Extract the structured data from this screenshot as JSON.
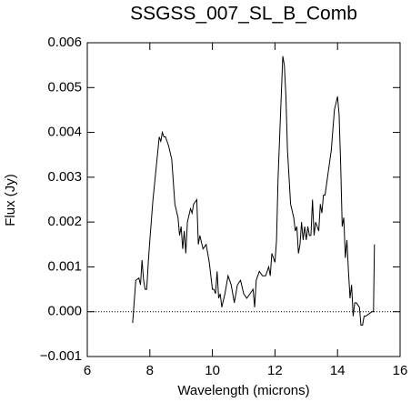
{
  "chart_data": {
    "type": "line",
    "title": "SSGSS_007_SL_B_Comb",
    "x_label": "Wavelength (microns)",
    "y_label": "Flux (Jy)",
    "xlim": [
      6,
      16
    ],
    "ylim": [
      -0.001,
      0.006
    ],
    "xticks": [
      6,
      8,
      10,
      12,
      14,
      16
    ],
    "yticks": [
      {
        "value": -0.001,
        "label": "−0.001"
      },
      {
        "value": 0,
        "label": "0.000"
      },
      0.001,
      0.002,
      0.003,
      0.004,
      0.005,
      0.006
    ],
    "zero_line": true,
    "x": [
      7.45,
      7.55,
      7.65,
      7.7,
      7.75,
      7.8,
      7.85,
      7.9,
      7.95,
      8.0,
      8.1,
      8.2,
      8.3,
      8.35,
      8.4,
      8.45,
      8.5,
      8.6,
      8.7,
      8.8,
      8.9,
      8.95,
      9.0,
      9.05,
      9.1,
      9.15,
      9.2,
      9.3,
      9.35,
      9.4,
      9.5,
      9.55,
      9.6,
      9.7,
      9.8,
      9.9,
      10.0,
      10.05,
      10.1,
      10.15,
      10.2,
      10.25,
      10.3,
      10.4,
      10.5,
      10.6,
      10.7,
      10.8,
      10.9,
      11.0,
      11.1,
      11.2,
      11.3,
      11.35,
      11.4,
      11.5,
      11.6,
      11.7,
      11.8,
      11.85,
      11.9,
      12.0,
      12.05,
      12.1,
      12.2,
      12.25,
      12.3,
      12.35,
      12.4,
      12.5,
      12.6,
      12.65,
      12.7,
      12.75,
      12.8,
      12.85,
      12.9,
      12.95,
      13.0,
      13.05,
      13.1,
      13.15,
      13.2,
      13.25,
      13.3,
      13.4,
      13.45,
      13.5,
      13.55,
      13.6,
      13.7,
      13.8,
      13.9,
      14.0,
      14.05,
      14.1,
      14.15,
      14.2,
      14.25,
      14.3,
      14.35,
      14.4,
      14.45,
      14.5,
      14.55,
      14.6,
      14.7,
      14.75,
      14.8,
      14.85,
      14.9,
      15.0,
      15.1,
      15.15,
      15.18
    ],
    "series": [
      {
        "color": "#000000",
        "values": [
          -0.00025,
          0.0007,
          0.00075,
          0.0006,
          0.00115,
          0.0007,
          0.0005,
          0.0005,
          0.0011,
          0.0016,
          0.0025,
          0.0032,
          0.0039,
          0.0038,
          0.004,
          0.0039,
          0.0039,
          0.0037,
          0.0034,
          0.0024,
          0.0021,
          0.0017,
          0.0019,
          0.0014,
          0.0018,
          0.0013,
          0.002,
          0.0023,
          0.0022,
          0.0024,
          0.0025,
          0.0015,
          0.0017,
          0.0014,
          0.0015,
          0.0011,
          0.0005,
          0.0005,
          0.0004,
          0.0009,
          0.0003,
          0.0004,
          0.0001,
          0.0004,
          0.0008,
          0.0006,
          0.0002,
          0.0006,
          0.0007,
          0.0004,
          0.0003,
          0.0004,
          0.0005,
          0.0001,
          0.0007,
          0.0009,
          0.0008,
          0.0008,
          0.001,
          0.0008,
          0.0013,
          0.0011,
          0.0016,
          0.003,
          0.0048,
          0.0057,
          0.0055,
          0.0048,
          0.0036,
          0.0024,
          0.0021,
          0.0018,
          0.0019,
          0.0013,
          0.0015,
          0.002,
          0.0016,
          0.0019,
          0.0016,
          0.0019,
          0.0017,
          0.0017,
          0.0025,
          0.0017,
          0.002,
          0.0018,
          0.0024,
          0.0022,
          0.0026,
          0.0026,
          0.0031,
          0.0036,
          0.0045,
          0.0048,
          0.0044,
          0.0033,
          0.0019,
          0.0021,
          0.0012,
          0.0016,
          0.0009,
          0.0003,
          0.0006,
          -0.0001,
          0.0002,
          0.0002,
          0.0001,
          -0.0003,
          -0.0003,
          -0.0001,
          -0.0001,
          -5e-05,
          0,
          0,
          0.0015
        ]
      }
    ]
  }
}
